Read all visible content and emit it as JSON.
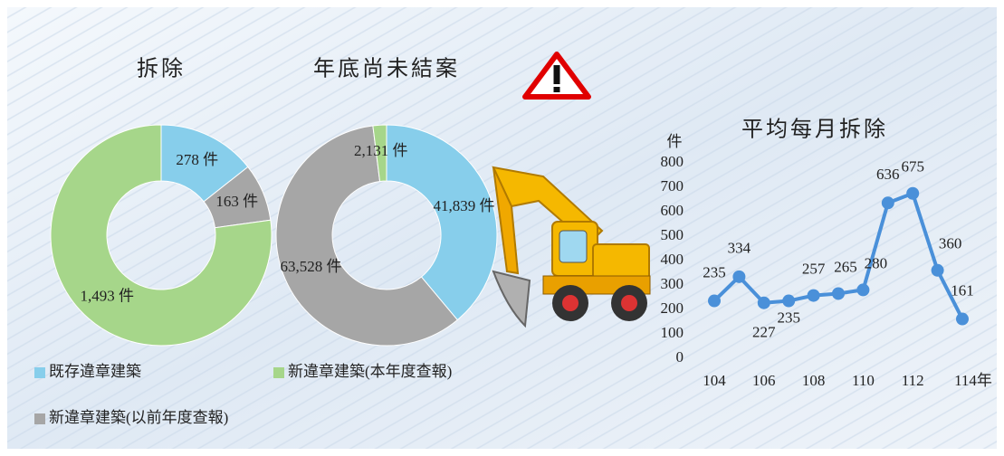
{
  "legend": [
    {
      "name": "既存違章建築",
      "color": "#87ceeb"
    },
    {
      "name": "新違章建築(本年度查報)",
      "color": "#a6d68a"
    },
    {
      "name": "新違章建築(以前年度查報)",
      "color": "#a6a6a6"
    }
  ],
  "chart_data": [
    {
      "type": "donut",
      "title": "拆除",
      "values": [
        278,
        163,
        1493
      ],
      "value_labels": [
        "278 件",
        "163 件",
        "1,493 件"
      ],
      "colors": [
        "#87ceeb",
        "#a6a6a6",
        "#a6d68a"
      ]
    },
    {
      "type": "donut",
      "title": "年底尚未結案",
      "values": [
        41839,
        63528,
        2131
      ],
      "value_labels": [
        "41,839 件",
        "63,528 件",
        "2,131 件"
      ],
      "colors": [
        "#87ceeb",
        "#a6a6a6",
        "#a6d68a"
      ]
    },
    {
      "type": "line",
      "title": "平均每月拆除",
      "y_label": "件",
      "x": [
        104,
        105,
        106,
        107,
        108,
        109,
        110,
        111,
        112,
        113,
        114
      ],
      "series": [
        {
          "color": "#4a90d9",
          "values": [
            235,
            334,
            227,
            235,
            257,
            265,
            280,
            636,
            675,
            360,
            161
          ]
        }
      ],
      "xlim": [
        104,
        114
      ],
      "xticks": [
        104,
        106,
        108,
        110,
        112,
        {
          "value": 114,
          "label": "114年"
        }
      ],
      "ylim": [
        0,
        800
      ],
      "yticks": [
        0,
        100,
        200,
        300,
        400,
        500,
        600,
        700,
        800
      ]
    }
  ]
}
